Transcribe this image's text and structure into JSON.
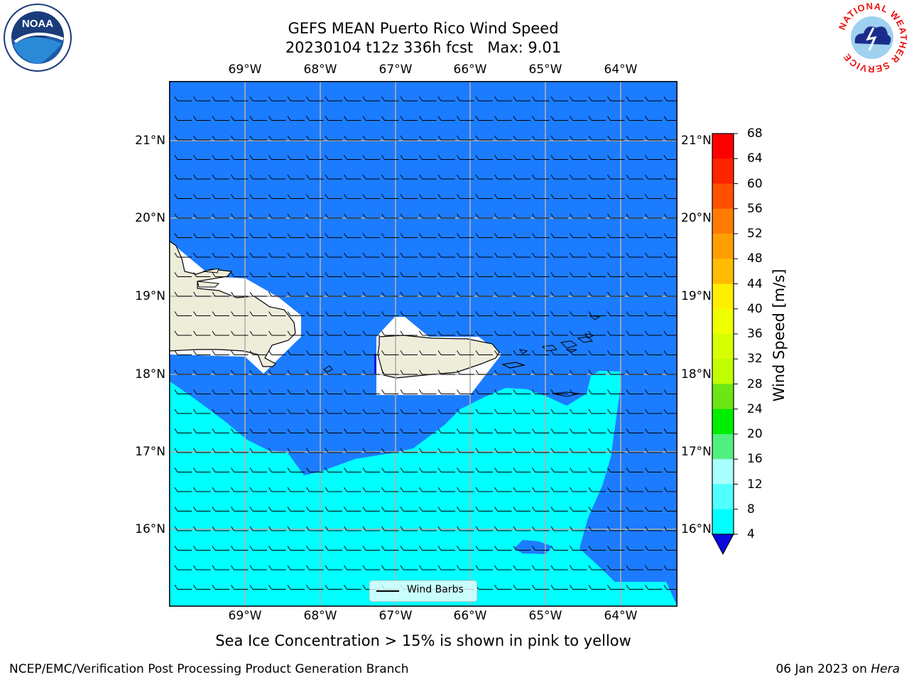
{
  "title": {
    "line1": "GEFS MEAN Puerto Rico Wind Speed",
    "line2": "20230104 t12z 336h fcst   Max: 9.01"
  },
  "map": {
    "lon_range": [
      -70.0,
      -63.25
    ],
    "lat_range": [
      15.0,
      21.75
    ],
    "lon_ticks": [
      "69°W",
      "68°W",
      "67°W",
      "66°W",
      "65°W",
      "64°W"
    ],
    "lat_ticks": [
      "21°N",
      "20°N",
      "19°N",
      "18°N",
      "17°N",
      "16°N"
    ],
    "gridlines": true,
    "wind_barbs": "westward-pointing barbs, ~2 m/s half barbs",
    "regions": {
      "ocean_4_8": "#1c7cff",
      "ocean_8_12": "#00ffff",
      "ocean_below_4": "#0a0adf",
      "land": "#eeedda"
    }
  },
  "colorbar": {
    "title": "Wind Speed [m/s]",
    "ticks": [
      "68",
      "64",
      "60",
      "56",
      "52",
      "48",
      "44",
      "40",
      "36",
      "32",
      "28",
      "24",
      "20",
      "16",
      "12",
      "8",
      "4"
    ],
    "colors": [
      "#ff0000",
      "#ff2400",
      "#ff5000",
      "#ff7c00",
      "#ff9e00",
      "#ffbc00",
      "#ffee00",
      "#f0ff00",
      "#d8ff00",
      "#c0ff00",
      "#6ce615",
      "#00ee00",
      "#50f080",
      "#a8ffff",
      "#50ffff",
      "#00ffff",
      "#1c7cff"
    ],
    "under_color": "#0a0adf"
  },
  "legend": {
    "label": "Wind Barbs"
  },
  "note": "Sea Ice Concentration > 15% is shown in pink to yellow",
  "footer": {
    "credit": "NCEP/EMC/Verification Post Processing Product Generation Branch",
    "date": "06 Jan 2023 on",
    "machine": "Hera"
  },
  "logos": {
    "left": "NOAA",
    "right": "NATIONAL WEATHER SERVICE"
  }
}
